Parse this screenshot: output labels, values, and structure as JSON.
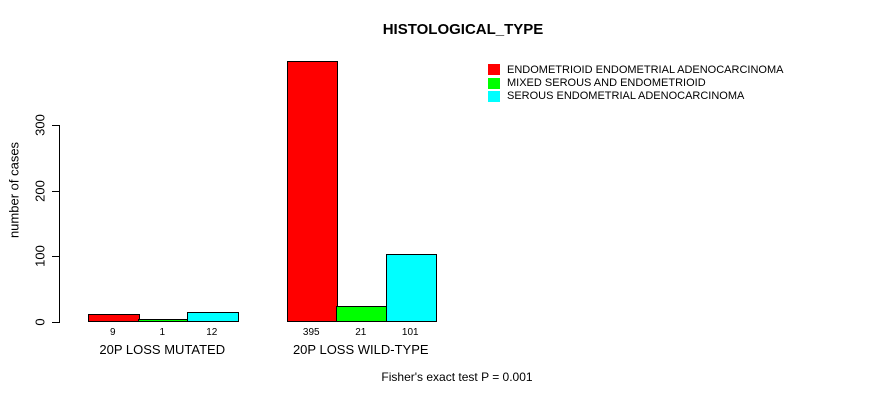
{
  "chart_data": {
    "type": "bar",
    "title": "HISTOLOGICAL_TYPE",
    "ylabel": "number of cases",
    "xlabel": "",
    "categories": [
      "20P LOSS MUTATED",
      "20P LOSS WILD-TYPE"
    ],
    "series": [
      {
        "name": "ENDOMETRIOID ENDOMETRIAL ADENOCARCINOMA",
        "color": "#FF0000",
        "values": [
          9,
          395
        ]
      },
      {
        "name": "MIXED SEROUS AND ENDOMETRIOID",
        "color": "#00FF00",
        "values": [
          1,
          21
        ]
      },
      {
        "name": "SEROUS ENDOMETRIAL ADENOCARCINOMA",
        "color": "#00FFFF",
        "values": [
          12,
          101
        ]
      }
    ],
    "bar_value_labels": [
      [
        "9",
        "1",
        "12"
      ],
      [
        "395",
        "21",
        "101"
      ]
    ],
    "yticks": [
      "0",
      "100",
      "200",
      "300"
    ],
    "ytick_values": [
      0,
      100,
      200,
      300
    ],
    "ylim": [
      0,
      395
    ],
    "grid": false,
    "legend_position": "top-right",
    "annotation": "Fisher's exact test P = 0.001",
    "bar_border_color": "#000000",
    "background_color": "#FFFFFF"
  }
}
